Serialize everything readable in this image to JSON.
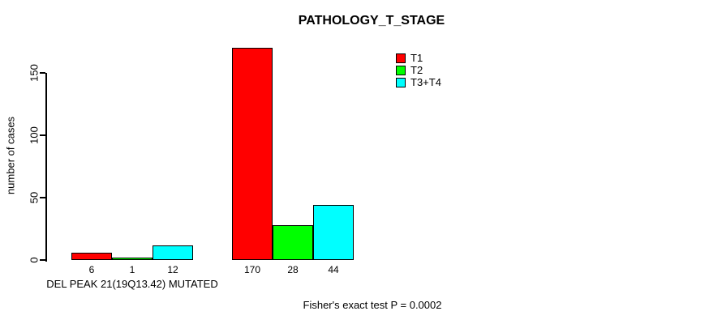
{
  "title": "PATHOLOGY_T_STAGE",
  "footer_note": "Fisher's exact test P = 0.0002",
  "chart_data": {
    "type": "bar",
    "title": "PATHOLOGY_T_STAGE",
    "xlabel": "DEL PEAK 21(19Q13.42) MUTATED",
    "ylabel": "number of cases",
    "annotation": "Fisher's exact test P = 0.0002",
    "categories": [
      "DEL PEAK 21(19Q13.42) MUTATED",
      ""
    ],
    "series": [
      {
        "name": "T1",
        "color": "#FF0000",
        "values": [
          6,
          170
        ]
      },
      {
        "name": "T2",
        "color": "#00FF00",
        "values": [
          1,
          28
        ]
      },
      {
        "name": "T3+T4",
        "color": "#00FFFF",
        "values": [
          12,
          44
        ]
      }
    ],
    "bar_value_labels": [
      [
        "6",
        "1",
        "12"
      ],
      [
        "170",
        "28",
        "44"
      ]
    ],
    "yticks": [
      0,
      50,
      100,
      150
    ],
    "ylim": [
      0,
      170
    ],
    "grid": false,
    "legend_position": "top-right",
    "axis_color": "#000000",
    "bar_border_color": "#000000"
  }
}
